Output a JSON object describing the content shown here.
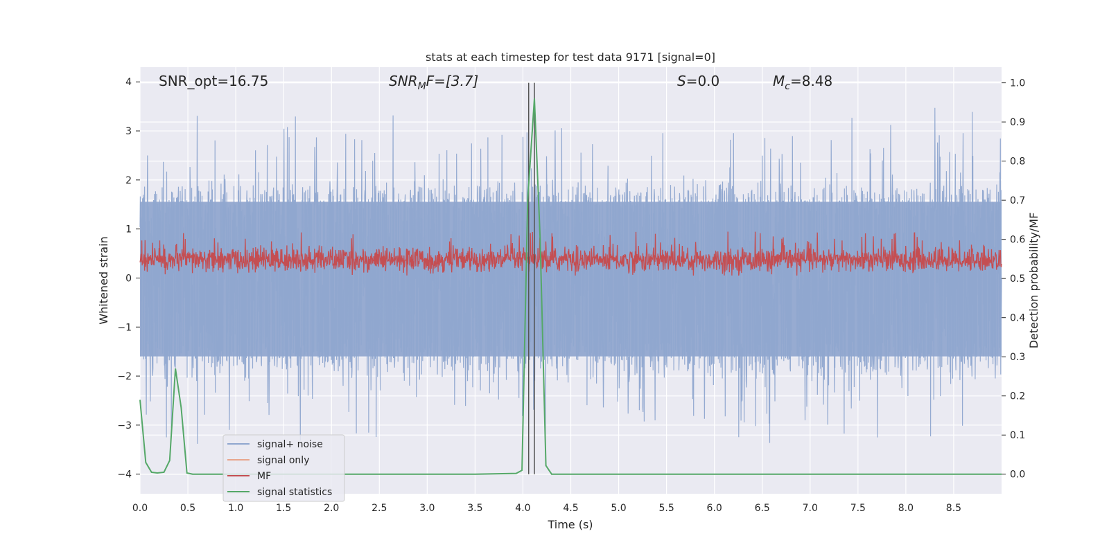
{
  "chart_data": {
    "type": "line",
    "title": "stats at each timestep for test data 9171 [signal=0]",
    "xlabel": "Time (s)",
    "ylabel_left": "Whitened strain",
    "ylabel_right": "Detection probability/MF",
    "xlim": [
      0.0,
      9.0
    ],
    "ylim_left": [
      -4.4,
      4.3
    ],
    "ylim_right": [
      -0.05,
      1.04
    ],
    "xticks": [
      "0.0",
      "0.5",
      "1.0",
      "1.5",
      "2.0",
      "2.5",
      "3.0",
      "3.5",
      "4.0",
      "4.5",
      "5.0",
      "5.5",
      "6.0",
      "6.5",
      "7.0",
      "7.5",
      "8.0",
      "8.5"
    ],
    "yticks_left": [
      "4",
      "3",
      "2",
      "1",
      "0",
      "−1",
      "−2",
      "−3",
      "−4"
    ],
    "yticks_right": [
      "1.0",
      "0.9",
      "0.8",
      "0.7",
      "0.6",
      "0.5",
      "0.4",
      "0.3",
      "0.2",
      "0.1",
      "0.0"
    ],
    "grid": true,
    "legend_position": "lower-left",
    "annotations": {
      "snr_opt": "SNR_opt=16.75",
      "snr_mf_main": "SNR",
      "snr_mf_sub": "M",
      "snr_mf_rest": "F=[3.7]",
      "s_var": "S",
      "s_value": "=0.0",
      "mc_var": "M",
      "mc_sub": "c",
      "mc_value": "=8.48"
    },
    "vlines_x": [
      4.06,
      4.12
    ],
    "series": [
      {
        "name": "signal+ noise",
        "color": "#8fa6cf",
        "axis": "left",
        "description_values": {
          "core_band": [
            -1.6,
            1.55
          ],
          "typical_peaks": [
            2.9,
            -2.8
          ],
          "max": 3.55,
          "min": -4.0
        }
      },
      {
        "name": "signal only",
        "color": "#e8a58c",
        "axis": "left",
        "values": []
      },
      {
        "name": "MF",
        "color": "#c44e52",
        "axis": "left",
        "description_values": {
          "band": [
            0.05,
            0.7
          ],
          "max": 0.95
        }
      },
      {
        "name": "signal statistics",
        "color": "#55a868",
        "axis": "right",
        "x": [
          0.0,
          0.06,
          0.12,
          0.18,
          0.25,
          0.31,
          0.37,
          0.43,
          0.49,
          0.55,
          0.7,
          1.0,
          2.0,
          3.0,
          3.5,
          3.93,
          3.99,
          4.05,
          4.12,
          4.18,
          4.24,
          4.3,
          4.5,
          5.0,
          6.0,
          7.0,
          8.0,
          9.0
        ],
        "y": [
          0.19,
          0.03,
          0.005,
          0.003,
          0.005,
          0.035,
          0.27,
          0.17,
          0.003,
          0.0,
          0.0,
          0.0,
          0.0,
          0.0,
          0.0,
          0.002,
          0.01,
          0.7,
          0.96,
          0.6,
          0.022,
          0.0,
          0.0,
          0.0,
          0.0,
          0.0,
          0.0,
          0.0
        ]
      }
    ]
  }
}
